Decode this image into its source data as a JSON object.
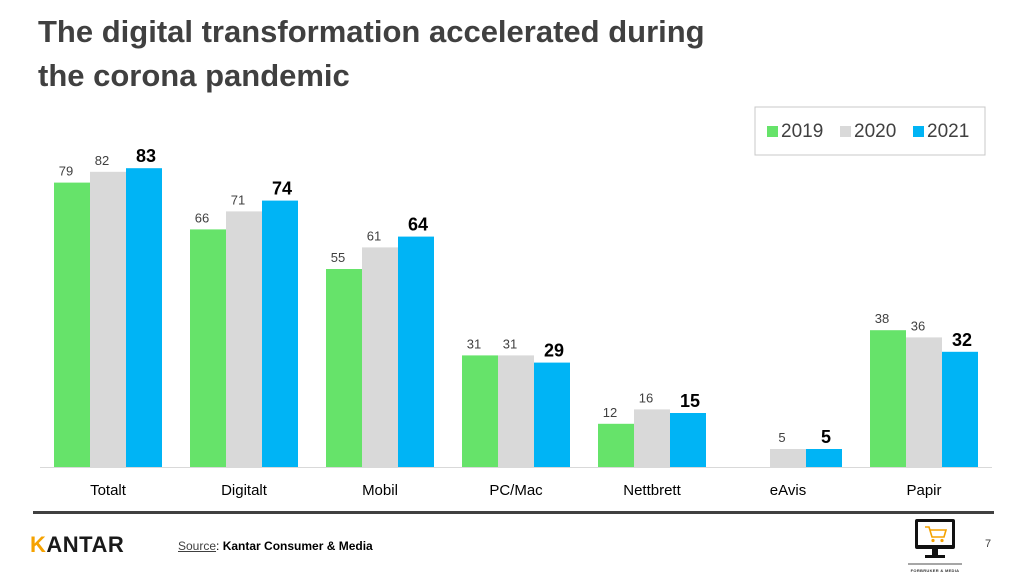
{
  "page": {
    "title": "The digital transformation accelerated during\nthe corona pandemic",
    "source_label": "Source",
    "source_sep": ": ",
    "source_value": "Kantar Consumer & Media",
    "page_number": "7",
    "logo_text_rest": "ANTAR",
    "logo_mark": "K",
    "brand_caption": "FORBRUKER & MEDIA",
    "brand_icon": "monitor-cart-icon"
  },
  "colors": {
    "2019": "#66e36a",
    "2020": "#d9d9d9",
    "2021": "#00b4f5",
    "axis": "#d9d9d9",
    "legend_border": "#c8c8c8",
    "label": "#404040"
  },
  "chart_data": {
    "type": "bar",
    "title": "",
    "xlabel": "",
    "ylabel": "",
    "ylim": [
      0,
      90
    ],
    "grid": false,
    "legend": "top-right",
    "categories": [
      "Totalt",
      "Digitalt",
      "Mobil",
      "PC/Mac",
      "Nettbrett",
      "eAvis",
      "Papir"
    ],
    "series": [
      {
        "name": "2019",
        "values": [
          79,
          66,
          55,
          31,
          12,
          null,
          38
        ]
      },
      {
        "name": "2020",
        "values": [
          82,
          71,
          61,
          31,
          16,
          5,
          36
        ]
      },
      {
        "name": "2021",
        "values": [
          83,
          74,
          64,
          29,
          15,
          5,
          32
        ]
      }
    ]
  }
}
